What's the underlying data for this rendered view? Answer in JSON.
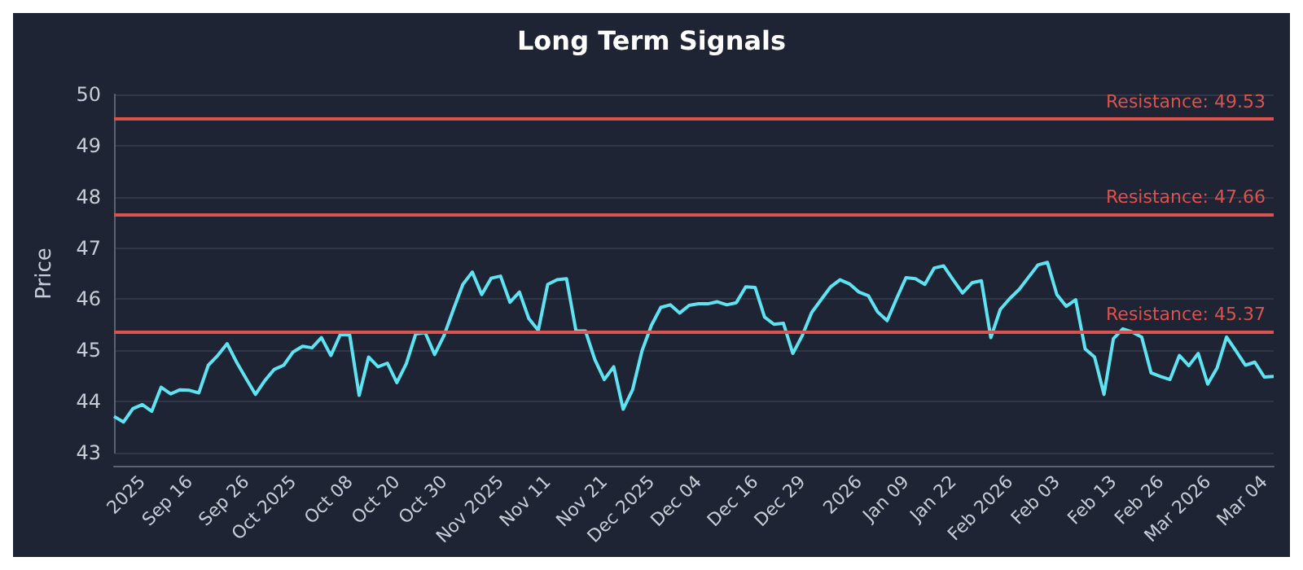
{
  "chart_data": {
    "type": "line",
    "title": "Long Term Signals",
    "ylabel": "Price",
    "categories": [
      null,
      null,
      null,
      "2025",
      null,
      null,
      null,
      null,
      "Sep 16",
      null,
      null,
      null,
      null,
      null,
      "Sep 26",
      null,
      null,
      null,
      null,
      "Oct 2025",
      null,
      null,
      null,
      null,
      null,
      "Oct 08",
      null,
      null,
      null,
      null,
      "Oct 20",
      null,
      null,
      null,
      null,
      "Oct 30",
      null,
      null,
      null,
      null,
      null,
      "Nov 2025",
      null,
      null,
      null,
      null,
      "Nov 11",
      null,
      null,
      null,
      null,
      null,
      "Nov 21",
      null,
      null,
      null,
      null,
      "Dec 2025",
      null,
      null,
      null,
      null,
      "Dec 04",
      null,
      null,
      null,
      null,
      null,
      "Dec 16",
      null,
      null,
      null,
      null,
      "Dec 29",
      null,
      null,
      null,
      null,
      null,
      "2026",
      null,
      null,
      null,
      null,
      "Jan 09",
      null,
      null,
      null,
      null,
      "Jan 22",
      null,
      null,
      null,
      null,
      null,
      "Feb 2026",
      null,
      null,
      null,
      null,
      "Feb 03",
      null,
      null,
      null,
      null,
      null,
      "Feb 13",
      null,
      null,
      null,
      null,
      "Feb 26",
      null,
      null,
      null,
      null,
      "Mar 2026",
      null,
      null,
      null,
      null,
      null,
      "Mar 04",
      null
    ],
    "series": [
      {
        "color": "#5ee3f2",
        "values": [
          43.71,
          43.6,
          43.86,
          43.94,
          43.81,
          44.28,
          44.15,
          44.23,
          44.22,
          44.17,
          44.71,
          44.9,
          45.13,
          44.77,
          44.45,
          44.14,
          44.41,
          44.63,
          44.71,
          44.97,
          45.08,
          45.05,
          45.25,
          44.9,
          45.31,
          45.3,
          44.12,
          44.87,
          44.68,
          44.75,
          44.37,
          44.74,
          45.32,
          45.35,
          44.92,
          45.29,
          45.8,
          46.29,
          46.53,
          46.09,
          46.41,
          46.45,
          45.94,
          46.14,
          45.62,
          45.39,
          46.29,
          46.38,
          46.4,
          45.38,
          45.38,
          44.82,
          44.43,
          44.68,
          43.85,
          44.23,
          44.99,
          45.49,
          45.84,
          45.89,
          45.73,
          45.88,
          45.91,
          45.91,
          45.95,
          45.89,
          45.93,
          46.24,
          46.23,
          45.65,
          45.51,
          45.53,
          44.94,
          45.29,
          45.74,
          45.99,
          46.24,
          46.38,
          46.3,
          46.14,
          46.07,
          45.75,
          45.58,
          46.01,
          46.42,
          46.4,
          46.29,
          46.61,
          46.65,
          46.38,
          46.12,
          46.32,
          46.36,
          45.25,
          45.8,
          46.01,
          46.19,
          46.43,
          46.67,
          46.72,
          46.09,
          45.86,
          45.99,
          45.03,
          44.87,
          44.14,
          45.23,
          45.42,
          45.36,
          45.26,
          44.56,
          44.49,
          44.43,
          44.9,
          44.7,
          44.94,
          44.34,
          44.66,
          45.26,
          44.99,
          44.71,
          44.77,
          44.48,
          44.49
        ]
      }
    ],
    "ylim": [
      43,
      50
    ],
    "yticks": [
      43,
      44,
      45,
      46,
      47,
      48,
      49,
      50
    ],
    "grid": "y",
    "marker": "none",
    "line_style": "solid",
    "ref_lines": [
      {
        "axis": "y",
        "value": 49.53,
        "label": "Resistance: 49.53",
        "color": "#d9534f"
      },
      {
        "axis": "y",
        "value": 47.66,
        "label": "Resistance: 47.66",
        "color": "#d9534f"
      },
      {
        "axis": "y",
        "value": 45.37,
        "label": "Resistance: 45.37",
        "color": "#d9534f"
      }
    ]
  }
}
